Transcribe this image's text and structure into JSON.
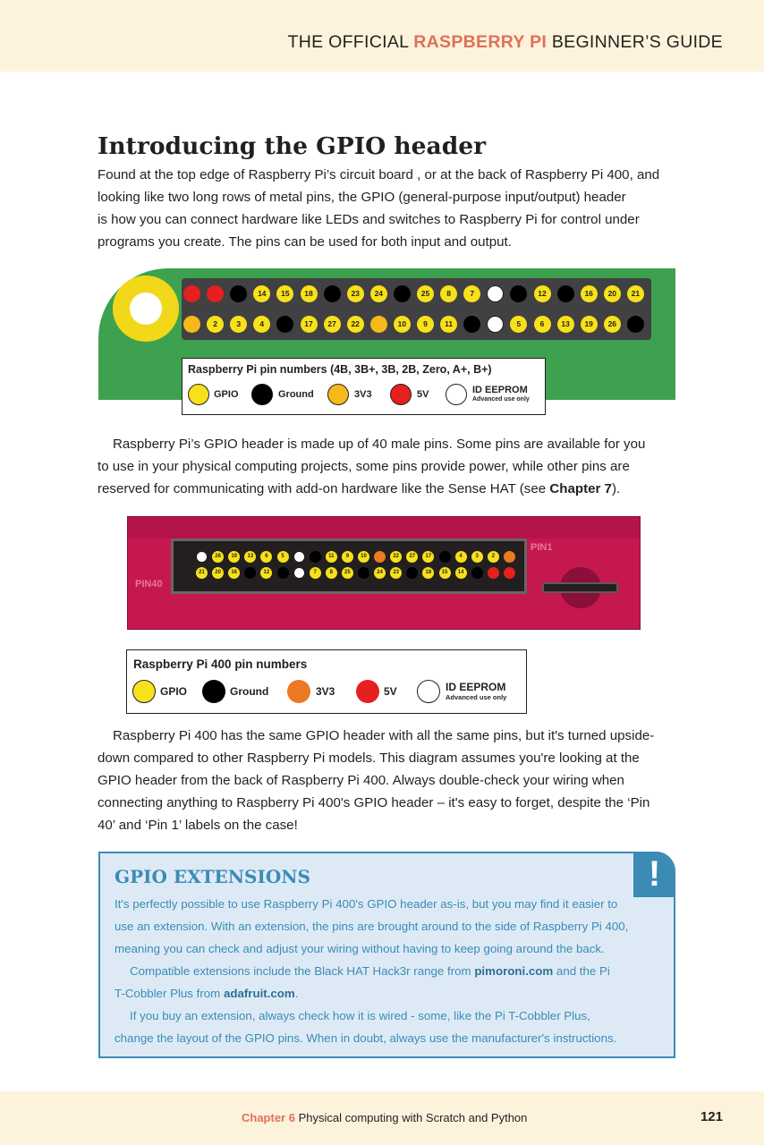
{
  "header": {
    "title_pre": "THE OFFICIAL ",
    "title_accent": "RASPBERRY PI",
    "title_post": " BEGINNER’S GUIDE"
  },
  "section_title": "Introducing the GPIO header",
  "intro_lines": [
    "Found at the top edge of Raspberry Pi’s circuit board , or at the back of Raspberry Pi 400, and",
    "looking like two long rows of metal pins, the GPIO (general-purpose input/output) header",
    "is how you can connect hardware like LEDs and switches to Raspberry Pi for control under",
    "programs you create. The pins can be used for both input and output."
  ],
  "diagram1": {
    "top_row": [
      {
        "label": "",
        "type": "5v"
      },
      {
        "label": "",
        "type": "5v"
      },
      {
        "label": "",
        "type": "ground"
      },
      {
        "label": "14",
        "type": "gpio"
      },
      {
        "label": "15",
        "type": "gpio"
      },
      {
        "label": "18",
        "type": "gpio"
      },
      {
        "label": "",
        "type": "ground"
      },
      {
        "label": "23",
        "type": "gpio"
      },
      {
        "label": "24",
        "type": "gpio"
      },
      {
        "label": "",
        "type": "ground"
      },
      {
        "label": "25",
        "type": "gpio"
      },
      {
        "label": "8",
        "type": "gpio"
      },
      {
        "label": "7",
        "type": "gpio"
      },
      {
        "label": "",
        "type": "eeprom"
      },
      {
        "label": "",
        "type": "ground"
      },
      {
        "label": "12",
        "type": "gpio"
      },
      {
        "label": "",
        "type": "ground"
      },
      {
        "label": "16",
        "type": "gpio"
      },
      {
        "label": "20",
        "type": "gpio"
      },
      {
        "label": "21",
        "type": "gpio"
      }
    ],
    "bottom_row": [
      {
        "label": "",
        "type": "3v3"
      },
      {
        "label": "2",
        "type": "gpio"
      },
      {
        "label": "3",
        "type": "gpio"
      },
      {
        "label": "4",
        "type": "gpio"
      },
      {
        "label": "",
        "type": "ground"
      },
      {
        "label": "17",
        "type": "gpio"
      },
      {
        "label": "27",
        "type": "gpio"
      },
      {
        "label": "22",
        "type": "gpio"
      },
      {
        "label": "",
        "type": "3v3"
      },
      {
        "label": "10",
        "type": "gpio"
      },
      {
        "label": "9",
        "type": "gpio"
      },
      {
        "label": "11",
        "type": "gpio"
      },
      {
        "label": "",
        "type": "ground"
      },
      {
        "label": "",
        "type": "eeprom"
      },
      {
        "label": "5",
        "type": "gpio"
      },
      {
        "label": "6",
        "type": "gpio"
      },
      {
        "label": "13",
        "type": "gpio"
      },
      {
        "label": "19",
        "type": "gpio"
      },
      {
        "label": "26",
        "type": "gpio"
      },
      {
        "label": "",
        "type": "ground"
      }
    ],
    "legend": {
      "title": "Raspberry Pi pin numbers (4B, 3B+, 3B, 2B, Zero, A+, B+)",
      "items": [
        "GPIO",
        "Ground",
        "3V3",
        "5V",
        "ID EEPROM"
      ],
      "eeprom_note": "Advanced use only"
    }
  },
  "para2_lines": [
    "Raspberry Pi’s GPIO header is made up of 40 male pins. Some pins are available for you",
    "to use in your physical computing projects, some pins provide power, while other pins are"
  ],
  "para2_last": {
    "pre": "reserved for communicating with add-on hardware like the Sense HAT (see ",
    "bold": "Chapter 7",
    "post": ")."
  },
  "diagram2": {
    "pin1_label": "PIN1",
    "pin40_label": "PIN40",
    "top_row": [
      {
        "label": "",
        "type": "eeprom"
      },
      {
        "label": "26",
        "type": "gpio"
      },
      {
        "label": "19",
        "type": "gpio"
      },
      {
        "label": "13",
        "type": "gpio"
      },
      {
        "label": "6",
        "type": "gpio"
      },
      {
        "label": "5",
        "type": "gpio"
      },
      {
        "label": "",
        "type": "eeprom"
      },
      {
        "label": "",
        "type": "ground"
      },
      {
        "label": "11",
        "type": "gpio"
      },
      {
        "label": "9",
        "type": "gpio"
      },
      {
        "label": "10",
        "type": "gpio"
      },
      {
        "label": "",
        "type": "3v3"
      },
      {
        "label": "22",
        "type": "gpio"
      },
      {
        "label": "27",
        "type": "gpio"
      },
      {
        "label": "17",
        "type": "gpio"
      },
      {
        "label": "",
        "type": "ground"
      },
      {
        "label": "4",
        "type": "gpio"
      },
      {
        "label": "3",
        "type": "gpio"
      },
      {
        "label": "2",
        "type": "gpio"
      },
      {
        "label": "",
        "type": "3v3"
      }
    ],
    "bottom_row": [
      {
        "label": "21",
        "type": "gpio"
      },
      {
        "label": "20",
        "type": "gpio"
      },
      {
        "label": "16",
        "type": "gpio"
      },
      {
        "label": "",
        "type": "ground"
      },
      {
        "label": "12",
        "type": "gpio"
      },
      {
        "label": "",
        "type": "ground"
      },
      {
        "label": "",
        "type": "eeprom"
      },
      {
        "label": "7",
        "type": "gpio"
      },
      {
        "label": "8",
        "type": "gpio"
      },
      {
        "label": "25",
        "type": "gpio"
      },
      {
        "label": "",
        "type": "ground"
      },
      {
        "label": "24",
        "type": "gpio"
      },
      {
        "label": "23",
        "type": "gpio"
      },
      {
        "label": "",
        "type": "ground"
      },
      {
        "label": "18",
        "type": "gpio"
      },
      {
        "label": "15",
        "type": "gpio"
      },
      {
        "label": "14",
        "type": "gpio"
      },
      {
        "label": "",
        "type": "ground"
      },
      {
        "label": "",
        "type": "5v"
      },
      {
        "label": "",
        "type": "5v"
      }
    ],
    "legend": {
      "title": "Raspberry Pi 400 pin numbers",
      "items": [
        "GPIO",
        "Ground",
        "3V3",
        "5V",
        "ID EEPROM"
      ],
      "eeprom_note": "Advanced use only"
    }
  },
  "para3_lines": [
    "Raspberry Pi 400 has the same GPIO header with all the same pins, but it's turned upside-",
    "down compared to other Raspberry Pi models. This diagram assumes you're looking at the",
    "GPIO header from the back of Raspberry Pi 400. Always double-check your wiring when",
    "connecting anything to Raspberry Pi 400's GPIO header – it's easy to forget, despite the ‘Pin",
    "40’ and ‘Pin 1’ labels on the case!"
  ],
  "callout": {
    "icon_glyph": "!",
    "title": "GPIO EXTENSIONS",
    "p1_lines": [
      "It's perfectly possible to use Raspberry Pi 400's GPIO header as-is, but you may find it easier to",
      "use an extension. With an extension, the pins are brought around to the side of Raspberry Pi 400,",
      "meaning you can check and adjust your wiring without having to keep going around the back."
    ],
    "p2_a": "Compatible extensions include the Black HAT Hack3r range from ",
    "p2_link1": "pimoroni.com",
    "p2_b": " and the Pi",
    "p2_c": "T-Cobbler Plus from ",
    "p2_link2": "adafruit.com",
    "p2_d": ".",
    "p3_lines": [
      "If you buy an extension, always check how it is wired - some, like the Pi T-Cobbler Plus,",
      "change the layout of the GPIO pins. When in doubt, always use the manufacturer's instructions."
    ]
  },
  "footer": {
    "chapter": "Chapter 6",
    "title": " Physical computing with Scratch and Python",
    "page": "121"
  },
  "colors": {
    "gpio": "#f7e11a",
    "ground": "#000000",
    "3v3_board": "#f6b91a",
    "3v3_pi400": "#ec7a23",
    "5v": "#e5201f",
    "eeprom": "#ffffff",
    "accent": "#e0705a",
    "callout_blue": "#3b8bb5"
  }
}
